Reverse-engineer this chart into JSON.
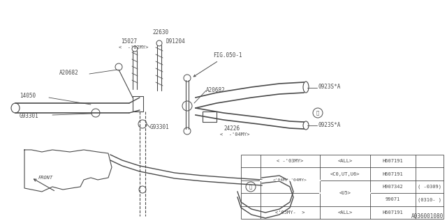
{
  "bg_color": "#ffffff",
  "lc": "#4a4a4a",
  "fig_w": 6.4,
  "fig_h": 3.2,
  "dpi": 100,
  "table": {
    "rows": [
      [
        "< -'03MY>",
        "<ALL>",
        "H607191",
        ""
      ],
      [
        "",
        "<C0,UT,U6>",
        "H607191",
        ""
      ],
      [
        "<'04MY-'04MY>",
        "<U5>",
        "H907342",
        "(   -0309)"
      ],
      [
        "",
        "",
        "99071",
        "(0310-   )"
      ],
      [
        "<'05MY-   >",
        "<ALL>",
        "H607191",
        ""
      ]
    ]
  },
  "part_number": "A036001080"
}
